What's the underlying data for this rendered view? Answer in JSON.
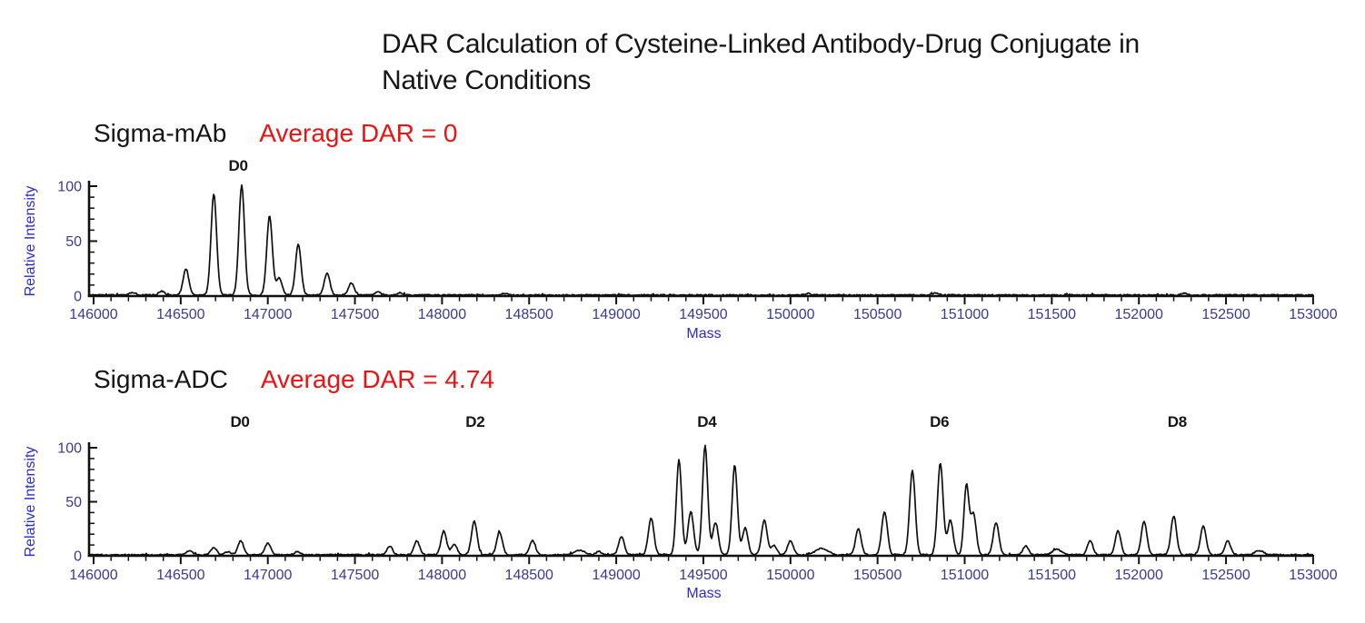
{
  "title": {
    "line1": "DAR Calculation of Cysteine-Linked Antibody-Drug Conjugate in",
    "line2": "Native Conditions"
  },
  "panels": [
    {
      "sample_label": "Sigma-mAb",
      "dar_label": "Average DAR = 0"
    },
    {
      "sample_label": "Sigma-ADC",
      "dar_label": "Average DAR = 4.74"
    }
  ],
  "colors": {
    "trace": "#101010",
    "axis": "#111111",
    "tick_label": "#3a3a90",
    "axis_title": "#2b2bd0",
    "dar_text": "#ee1111",
    "heading_text": "#161616"
  },
  "chart_data": [
    {
      "type": "line",
      "series_name": "Sigma-mAb",
      "title": "Sigma-mAb native mass spectrum",
      "xlabel": "Mass",
      "ylabel": "Relative Intensity",
      "xlim": [
        146000,
        153000
      ],
      "ylim": [
        0,
        100
      ],
      "x_major_tick": 500,
      "x_minor_tick": 100,
      "y_major_tick": 50,
      "y_minor_tick": 10,
      "grid": false,
      "legend": false,
      "annotations": [
        {
          "text": "D0",
          "mass": 146830
        }
      ],
      "peaks": {
        "format": "[mass_da, relative_intensity, optional_peak_width_da]",
        "values": [
          [
            146225,
            2.5
          ],
          [
            146390,
            3.5
          ],
          [
            146530,
            24
          ],
          [
            146690,
            92
          ],
          [
            146850,
            100
          ],
          [
            147010,
            72
          ],
          [
            147065,
            16
          ],
          [
            147175,
            46
          ],
          [
            147340,
            20
          ],
          [
            147480,
            11
          ],
          [
            147630,
            3
          ],
          [
            147760,
            2
          ],
          [
            148360,
            1.5
          ],
          [
            150100,
            1.3
          ],
          [
            150830,
            1.8
          ],
          [
            152260,
            2
          ]
        ]
      }
    },
    {
      "type": "line",
      "series_name": "Sigma-ADC",
      "title": "Sigma-ADC native mass spectrum",
      "xlabel": "Mass",
      "ylabel": "Relative Intensity",
      "xlim": [
        146000,
        153000
      ],
      "ylim": [
        0,
        100
      ],
      "x_major_tick": 500,
      "x_minor_tick": 100,
      "y_major_tick": 50,
      "y_minor_tick": 10,
      "grid": false,
      "legend": false,
      "annotations": [
        {
          "text": "D0",
          "mass": 146840
        },
        {
          "text": "D2",
          "mass": 148190
        },
        {
          "text": "D4",
          "mass": 149520
        },
        {
          "text": "D6",
          "mass": 150855
        },
        {
          "text": "D8",
          "mass": 152220
        }
      ],
      "peaks": {
        "format": "[mass_da, relative_intensity, optional_peak_width_da]",
        "values": [
          [
            146550,
            4
          ],
          [
            146690,
            7
          ],
          [
            146770,
            3
          ],
          [
            146845,
            13
          ],
          [
            147000,
            11
          ],
          [
            147170,
            3
          ],
          [
            147700,
            8
          ],
          [
            147855,
            13
          ],
          [
            148010,
            22
          ],
          [
            148070,
            10
          ],
          [
            148185,
            31
          ],
          [
            148330,
            21
          ],
          [
            148520,
            13
          ],
          [
            148790,
            4,
            30
          ],
          [
            148900,
            3
          ],
          [
            149030,
            17
          ],
          [
            149200,
            34
          ],
          [
            149360,
            88,
            15
          ],
          [
            149428,
            40
          ],
          [
            149510,
            101,
            15
          ],
          [
            149570,
            30
          ],
          [
            149680,
            83,
            15
          ],
          [
            149740,
            25
          ],
          [
            149850,
            32
          ],
          [
            149905,
            9
          ],
          [
            150000,
            13
          ],
          [
            150180,
            6,
            35
          ],
          [
            150390,
            24
          ],
          [
            150540,
            40
          ],
          [
            150700,
            78
          ],
          [
            150860,
            85
          ],
          [
            150918,
            32
          ],
          [
            151010,
            64,
            14
          ],
          [
            151050,
            38
          ],
          [
            151180,
            30
          ],
          [
            151350,
            8
          ],
          [
            151530,
            5,
            25
          ],
          [
            151720,
            13
          ],
          [
            151880,
            22
          ],
          [
            152030,
            31
          ],
          [
            152200,
            36
          ],
          [
            152370,
            27
          ],
          [
            152510,
            13
          ],
          [
            152690,
            4,
            25
          ]
        ]
      }
    }
  ]
}
